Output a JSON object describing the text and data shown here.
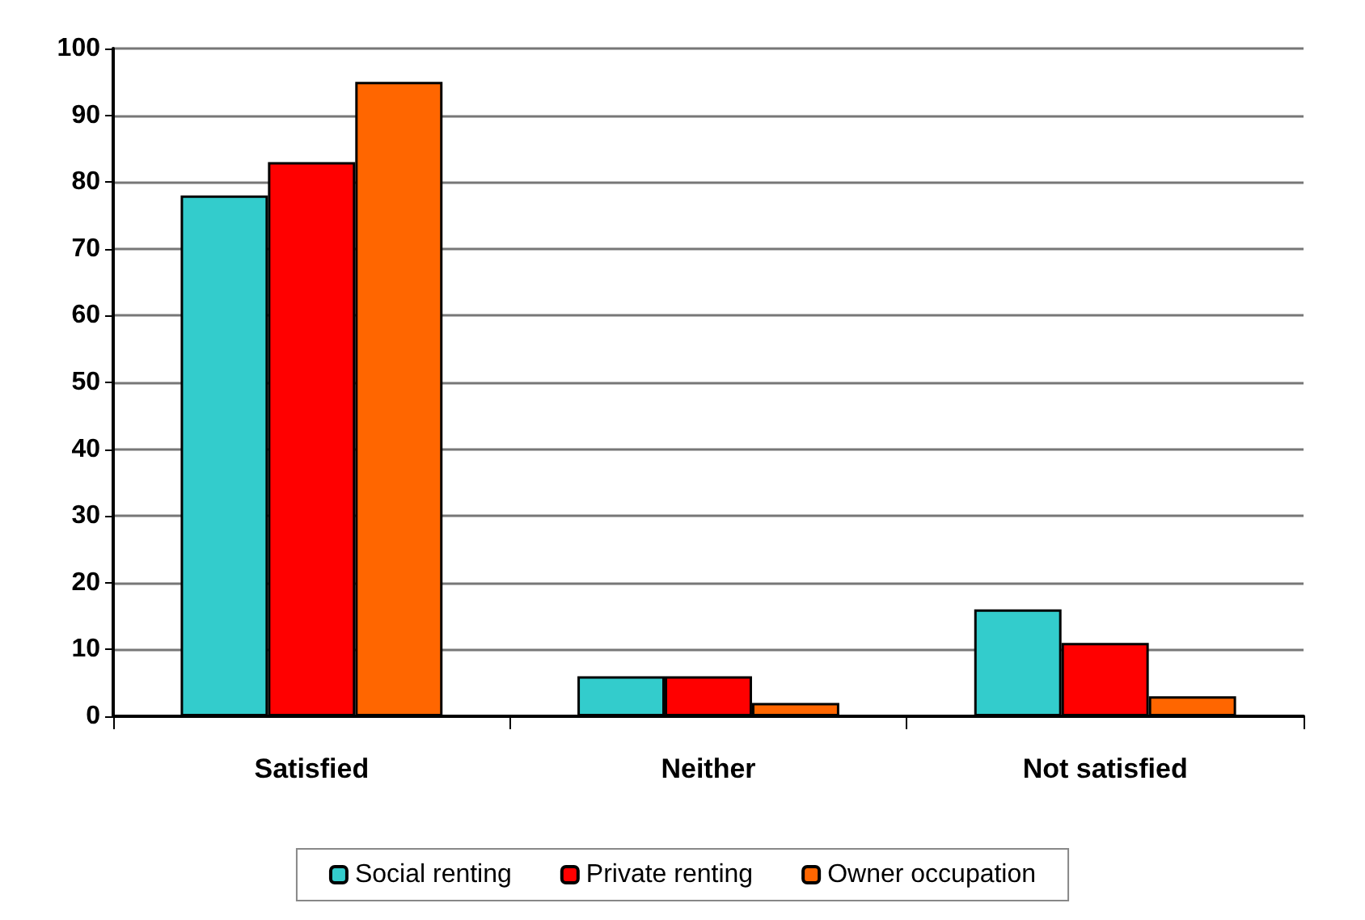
{
  "chart_data": {
    "type": "bar",
    "categories": [
      "Satisfied",
      "Neither",
      "Not satisfied"
    ],
    "series": [
      {
        "name": "Social renting",
        "color": "#33cccc",
        "values": [
          78,
          6,
          16
        ]
      },
      {
        "name": "Private renting",
        "color": "#ff0000",
        "values": [
          83,
          6,
          11
        ]
      },
      {
        "name": "Owner occupation",
        "color": "#ff6600",
        "values": [
          95,
          2,
          3
        ]
      }
    ],
    "ylim": [
      0,
      100
    ],
    "yticks": [
      0,
      10,
      20,
      30,
      40,
      50,
      60,
      70,
      80,
      90,
      100
    ],
    "grid": "y",
    "legend": "bottom"
  }
}
